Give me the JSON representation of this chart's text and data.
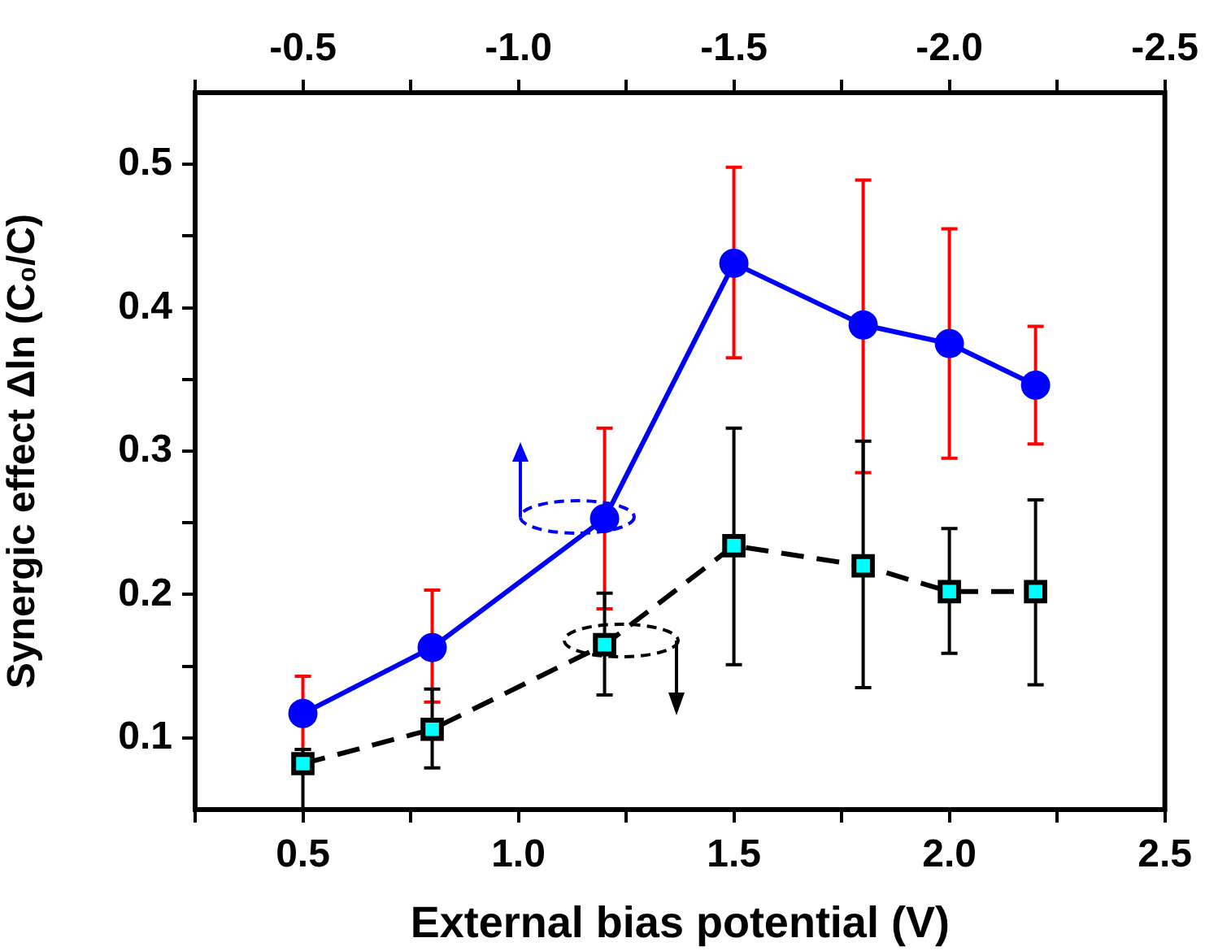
{
  "chart_data": {
    "type": "line",
    "xlabel": "External bias potential (V)",
    "ylabel": "Synergic effect Δln (C₀/C)",
    "x": [
      0.5,
      0.8,
      1.2,
      1.5,
      1.8,
      2.0,
      2.2
    ],
    "series": [
      {
        "color": "#0000ff",
        "marker": "circle",
        "line_style": "solid",
        "values": [
          0.117,
          0.163,
          0.253,
          0.431,
          0.388,
          0.375,
          0.346
        ],
        "errors": [
          [
            0.092,
            0.143
          ],
          [
            0.125,
            0.203
          ],
          [
            0.19,
            0.316
          ],
          [
            0.365,
            0.498
          ],
          [
            0.285,
            0.489
          ],
          [
            0.295,
            0.455
          ],
          [
            0.305,
            0.387
          ]
        ]
      },
      {
        "color": "#00ffff",
        "marker": "square",
        "line_style": "dashed",
        "values": [
          0.082,
          0.106,
          0.165,
          0.234,
          0.22,
          0.202,
          0.202
        ],
        "errors": [
          [
            0.05,
            0.092
          ],
          [
            0.079,
            0.134
          ],
          [
            0.13,
            0.201
          ],
          [
            0.151,
            0.316
          ],
          [
            0.135,
            0.307
          ],
          [
            0.159,
            0.246
          ],
          [
            0.137,
            0.266
          ]
        ]
      }
    ],
    "xlim": [
      0.25,
      2.5
    ],
    "xticks": [
      {
        "value": 0.25,
        "label": null
      },
      0.5,
      {
        "value": 0.75,
        "label": null
      },
      {
        "value": 1,
        "label": "1.0"
      },
      {
        "value": 1.25,
        "label": null
      },
      1.5,
      {
        "value": 1.75,
        "label": null
      },
      {
        "value": 2,
        "label": "2.0"
      },
      {
        "value": 2.25,
        "label": null
      },
      2.5
    ],
    "x2lim": [
      -0.25,
      -2.5
    ],
    "x2ticks": [
      {
        "value": -0.25,
        "label": null
      },
      -0.5,
      {
        "value": -0.75,
        "label": null
      },
      {
        "value": -1,
        "label": "-1.0"
      },
      {
        "value": -1.25,
        "label": null
      },
      -1.5,
      {
        "value": -1.75,
        "label": null
      },
      {
        "value": -2,
        "label": "-2.0"
      },
      {
        "value": -2.25,
        "label": null
      },
      -2.5
    ],
    "ylim": [
      0.05,
      0.55
    ],
    "yticks": [
      0.1,
      {
        "value": 0.15,
        "label": null
      },
      0.2,
      {
        "value": 0.25,
        "label": null
      },
      0.3,
      {
        "value": 0.35,
        "label": null
      },
      0.4,
      {
        "value": 0.45,
        "label": null
      },
      0.5
    ],
    "grid": false,
    "legend": false
  }
}
